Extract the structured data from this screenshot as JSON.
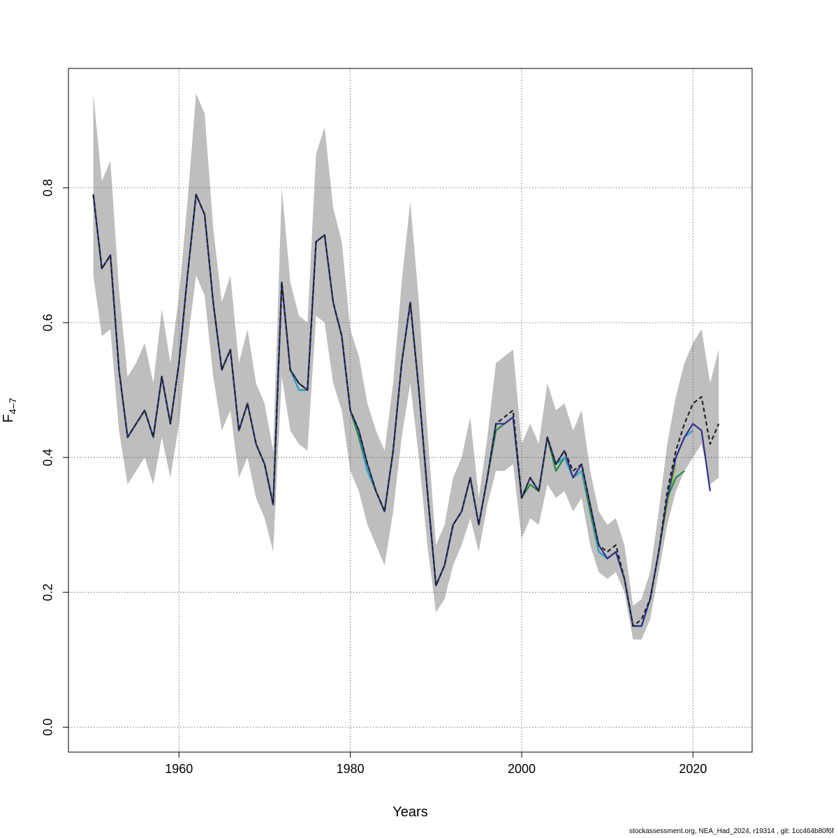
{
  "chart_data": {
    "type": "line",
    "xlabel": "Years",
    "ylabel": "F",
    "ylabel_sub": "4–7",
    "xlim": [
      1947.1,
      2026.9
    ],
    "ylim": [
      -0.037,
      0.977
    ],
    "xticks": [
      1960,
      1980,
      2000,
      2020
    ],
    "yticks": [
      0.0,
      0.2,
      0.4,
      0.6,
      0.8
    ],
    "ytick_labels": [
      "0.0",
      "0.2",
      "0.4",
      "0.6",
      "0.8"
    ],
    "grid": true,
    "confidence_band": {
      "x": [
        1950,
        1951,
        1952,
        1953,
        1954,
        1955,
        1956,
        1957,
        1958,
        1959,
        1960,
        1961,
        1962,
        1963,
        1964,
        1965,
        1966,
        1967,
        1968,
        1969,
        1970,
        1971,
        1972,
        1973,
        1974,
        1975,
        1976,
        1977,
        1978,
        1979,
        1980,
        1981,
        1982,
        1983,
        1984,
        1985,
        1986,
        1987,
        1988,
        1989,
        1990,
        1991,
        1992,
        1993,
        1994,
        1995,
        1996,
        1997,
        1998,
        1999,
        2000,
        2001,
        2002,
        2003,
        2004,
        2005,
        2006,
        2007,
        2008,
        2009,
        2010,
        2011,
        2012,
        2013,
        2014,
        2015,
        2016,
        2017,
        2018,
        2019,
        2020,
        2021,
        2022,
        2023
      ],
      "upper": [
        0.94,
        0.81,
        0.84,
        0.65,
        0.52,
        0.54,
        0.57,
        0.51,
        0.62,
        0.54,
        0.64,
        0.78,
        0.94,
        0.91,
        0.74,
        0.63,
        0.67,
        0.54,
        0.59,
        0.51,
        0.48,
        0.41,
        0.8,
        0.66,
        0.61,
        0.6,
        0.85,
        0.89,
        0.77,
        0.72,
        0.59,
        0.55,
        0.48,
        0.44,
        0.41,
        0.51,
        0.66,
        0.78,
        0.63,
        0.44,
        0.27,
        0.3,
        0.37,
        0.4,
        0.46,
        0.34,
        0.43,
        0.54,
        0.55,
        0.56,
        0.42,
        0.45,
        0.42,
        0.51,
        0.47,
        0.48,
        0.44,
        0.47,
        0.38,
        0.32,
        0.3,
        0.31,
        0.27,
        0.18,
        0.19,
        0.23,
        0.32,
        0.42,
        0.49,
        0.54,
        0.57,
        0.59,
        0.51,
        0.56
      ],
      "lower": [
        0.67,
        0.58,
        0.59,
        0.44,
        0.36,
        0.38,
        0.4,
        0.36,
        0.43,
        0.37,
        0.45,
        0.57,
        0.67,
        0.64,
        0.52,
        0.44,
        0.47,
        0.37,
        0.4,
        0.34,
        0.31,
        0.26,
        0.52,
        0.44,
        0.42,
        0.41,
        0.61,
        0.6,
        0.51,
        0.47,
        0.38,
        0.35,
        0.3,
        0.27,
        0.24,
        0.32,
        0.43,
        0.51,
        0.4,
        0.27,
        0.17,
        0.19,
        0.24,
        0.27,
        0.31,
        0.26,
        0.33,
        0.38,
        0.38,
        0.39,
        0.28,
        0.31,
        0.3,
        0.36,
        0.34,
        0.35,
        0.32,
        0.34,
        0.27,
        0.23,
        0.22,
        0.23,
        0.2,
        0.13,
        0.13,
        0.16,
        0.23,
        0.3,
        0.35,
        0.38,
        0.4,
        0.42,
        0.36,
        0.37
      ]
    },
    "series": [
      {
        "color": "#222222",
        "dashed": true,
        "x": [
          1950,
          1951,
          1952,
          1953,
          1954,
          1955,
          1956,
          1957,
          1958,
          1959,
          1960,
          1961,
          1962,
          1963,
          1964,
          1965,
          1966,
          1967,
          1968,
          1969,
          1970,
          1971,
          1972,
          1973,
          1974,
          1975,
          1976,
          1977,
          1978,
          1979,
          1980,
          1981,
          1982,
          1983,
          1984,
          1985,
          1986,
          1987,
          1988,
          1989,
          1990,
          1991,
          1992,
          1993,
          1994,
          1995,
          1996,
          1997,
          1998,
          1999,
          2000,
          2001,
          2002,
          2003,
          2004,
          2005,
          2006,
          2007,
          2008,
          2009,
          2010,
          2011,
          2012,
          2013,
          2014,
          2015,
          2016,
          2017,
          2018,
          2019,
          2020,
          2021,
          2022,
          2023
        ],
        "values": [
          0.79,
          0.68,
          0.7,
          0.53,
          0.43,
          0.45,
          0.47,
          0.43,
          0.52,
          0.45,
          0.54,
          0.67,
          0.79,
          0.76,
          0.63,
          0.53,
          0.56,
          0.44,
          0.48,
          0.42,
          0.39,
          0.33,
          0.66,
          0.53,
          0.51,
          0.5,
          0.72,
          0.73,
          0.63,
          0.58,
          0.47,
          0.44,
          0.39,
          0.35,
          0.32,
          0.41,
          0.54,
          0.63,
          0.5,
          0.35,
          0.21,
          0.24,
          0.3,
          0.32,
          0.37,
          0.3,
          0.37,
          0.45,
          0.46,
          0.47,
          0.34,
          0.37,
          0.35,
          0.43,
          0.39,
          0.41,
          0.38,
          0.39,
          0.33,
          0.27,
          0.26,
          0.27,
          0.22,
          0.15,
          0.16,
          0.19,
          0.26,
          0.35,
          0.41,
          0.45,
          0.48,
          0.49,
          0.42,
          0.45
        ]
      },
      {
        "color": "#33308f",
        "dashed": false,
        "x": [
          1950,
          1951,
          1952,
          1953,
          1954,
          1955,
          1956,
          1957,
          1958,
          1959,
          1960,
          1961,
          1962,
          1963,
          1964,
          1965,
          1966,
          1967,
          1968,
          1969,
          1970,
          1971,
          1972,
          1973,
          1974,
          1975,
          1976,
          1977,
          1978,
          1979,
          1980,
          1981,
          1982,
          1983,
          1984,
          1985,
          1986,
          1987,
          1988,
          1989,
          1990,
          1991,
          1992,
          1993,
          1994,
          1995,
          1996,
          1997,
          1998,
          1999,
          2000,
          2001,
          2002,
          2003,
          2004,
          2005,
          2006,
          2007,
          2008,
          2009,
          2010,
          2011,
          2012,
          2013,
          2014,
          2015,
          2016,
          2017,
          2018,
          2019,
          2020,
          2021,
          2022
        ],
        "values": [
          0.79,
          0.68,
          0.7,
          0.53,
          0.43,
          0.45,
          0.47,
          0.43,
          0.52,
          0.45,
          0.54,
          0.67,
          0.79,
          0.76,
          0.63,
          0.53,
          0.56,
          0.44,
          0.48,
          0.42,
          0.39,
          0.33,
          0.66,
          0.53,
          0.51,
          0.5,
          0.72,
          0.73,
          0.63,
          0.58,
          0.47,
          0.44,
          0.39,
          0.35,
          0.32,
          0.41,
          0.54,
          0.63,
          0.5,
          0.35,
          0.21,
          0.24,
          0.3,
          0.32,
          0.37,
          0.3,
          0.37,
          0.45,
          0.45,
          0.46,
          0.34,
          0.37,
          0.35,
          0.43,
          0.39,
          0.41,
          0.37,
          0.39,
          0.33,
          0.27,
          0.25,
          0.26,
          0.22,
          0.15,
          0.15,
          0.19,
          0.26,
          0.34,
          0.4,
          0.43,
          0.45,
          0.44,
          0.35
        ]
      },
      {
        "color": "#2aa6c8",
        "dashed": false,
        "x": [
          1950,
          1951,
          1952,
          1953,
          1954,
          1955,
          1956,
          1957,
          1958,
          1959,
          1960,
          1961,
          1962,
          1963,
          1964,
          1965,
          1966,
          1967,
          1968,
          1969,
          1970,
          1971,
          1972,
          1973,
          1974,
          1975,
          1976,
          1977,
          1978,
          1979,
          1980,
          1981,
          1982,
          1983,
          1984,
          1985,
          1986,
          1987,
          1988,
          1989,
          1990,
          1991,
          1992,
          1993,
          1994,
          1995,
          1996,
          1997,
          1998,
          1999,
          2000,
          2001,
          2002,
          2003,
          2004,
          2005,
          2006,
          2007,
          2008,
          2009,
          2010,
          2011,
          2012,
          2013,
          2014,
          2015,
          2016,
          2017,
          2018,
          2019,
          2020
        ],
        "values": [
          0.79,
          0.68,
          0.7,
          0.53,
          0.43,
          0.45,
          0.47,
          0.43,
          0.52,
          0.45,
          0.54,
          0.67,
          0.79,
          0.76,
          0.63,
          0.53,
          0.56,
          0.44,
          0.48,
          0.42,
          0.39,
          0.33,
          0.66,
          0.53,
          0.5,
          0.5,
          0.72,
          0.73,
          0.63,
          0.58,
          0.47,
          0.44,
          0.38,
          0.35,
          0.32,
          0.41,
          0.54,
          0.63,
          0.5,
          0.35,
          0.21,
          0.24,
          0.3,
          0.32,
          0.37,
          0.3,
          0.37,
          0.45,
          0.45,
          0.46,
          0.34,
          0.37,
          0.35,
          0.43,
          0.39,
          0.4,
          0.37,
          0.38,
          0.33,
          0.26,
          0.25,
          0.26,
          0.22,
          0.15,
          0.15,
          0.19,
          0.26,
          0.34,
          0.4,
          0.43,
          0.44
        ]
      },
      {
        "color": "#23874a",
        "dashed": false,
        "x": [
          1950,
          1951,
          1952,
          1953,
          1954,
          1955,
          1956,
          1957,
          1958,
          1959,
          1960,
          1961,
          1962,
          1963,
          1964,
          1965,
          1966,
          1967,
          1968,
          1969,
          1970,
          1971,
          1972,
          1973,
          1974,
          1975,
          1976,
          1977,
          1978,
          1979,
          1980,
          1981,
          1982,
          1983,
          1984,
          1985,
          1986,
          1987,
          1988,
          1989,
          1990,
          1991,
          1992,
          1993,
          1994,
          1995,
          1996,
          1997,
          1998,
          1999,
          2000,
          2001,
          2002,
          2003,
          2004,
          2005,
          2006,
          2007,
          2008,
          2009,
          2010,
          2011,
          2012,
          2013,
          2014,
          2015,
          2016,
          2017,
          2018,
          2019
        ],
        "values": [
          0.79,
          0.68,
          0.7,
          0.53,
          0.43,
          0.45,
          0.47,
          0.43,
          0.52,
          0.45,
          0.54,
          0.67,
          0.79,
          0.76,
          0.63,
          0.53,
          0.56,
          0.44,
          0.48,
          0.42,
          0.39,
          0.33,
          0.66,
          0.53,
          0.5,
          0.5,
          0.72,
          0.73,
          0.63,
          0.58,
          0.47,
          0.43,
          0.38,
          0.35,
          0.32,
          0.41,
          0.54,
          0.63,
          0.5,
          0.35,
          0.21,
          0.24,
          0.3,
          0.32,
          0.37,
          0.3,
          0.37,
          0.44,
          0.45,
          0.46,
          0.34,
          0.36,
          0.35,
          0.43,
          0.38,
          0.4,
          0.37,
          0.38,
          0.32,
          0.26,
          0.25,
          0.26,
          0.22,
          0.15,
          0.15,
          0.19,
          0.26,
          0.34,
          0.37,
          0.38
        ]
      },
      {
        "color": "#8cbf33",
        "dashed": false,
        "x": [
          1950,
          1951,
          1952,
          1953,
          1954,
          1955,
          1956,
          1957,
          1958,
          1959,
          1960,
          1961,
          1962,
          1963,
          1964,
          1965,
          1966,
          1967,
          1968,
          1969,
          1970,
          1971,
          1972,
          1973,
          1974,
          1975,
          1976,
          1977,
          1978,
          1979,
          1980,
          1981,
          1982,
          1983,
          1984,
          1985,
          1986,
          1987,
          1988,
          1989,
          1990,
          1991,
          1992,
          1993,
          1994,
          1995,
          1996,
          1997,
          1998,
          1999,
          2000,
          2001,
          2002,
          2003,
          2004,
          2005,
          2006,
          2007,
          2008,
          2009,
          2010,
          2011,
          2012,
          2013,
          2014,
          2015,
          2016,
          2017,
          2018
        ],
        "values": [
          0.79,
          0.68,
          0.7,
          0.53,
          0.43,
          0.45,
          0.47,
          0.43,
          0.52,
          0.45,
          0.54,
          0.67,
          0.79,
          0.76,
          0.63,
          0.53,
          0.56,
          0.44,
          0.48,
          0.42,
          0.39,
          0.33,
          0.66,
          0.53,
          0.5,
          0.5,
          0.72,
          0.73,
          0.63,
          0.58,
          0.47,
          0.43,
          0.38,
          0.35,
          0.32,
          0.41,
          0.54,
          0.63,
          0.5,
          0.35,
          0.21,
          0.24,
          0.3,
          0.32,
          0.37,
          0.3,
          0.37,
          0.44,
          0.45,
          0.46,
          0.34,
          0.36,
          0.35,
          0.43,
          0.38,
          0.4,
          0.37,
          0.38,
          0.32,
          0.26,
          0.25,
          0.26,
          0.22,
          0.15,
          0.15,
          0.19,
          0.26,
          0.33,
          0.39
        ]
      }
    ]
  },
  "footer": "stockassessment.org, NEA_Had_2024, r19314 , git: 1cc464b80f6f"
}
